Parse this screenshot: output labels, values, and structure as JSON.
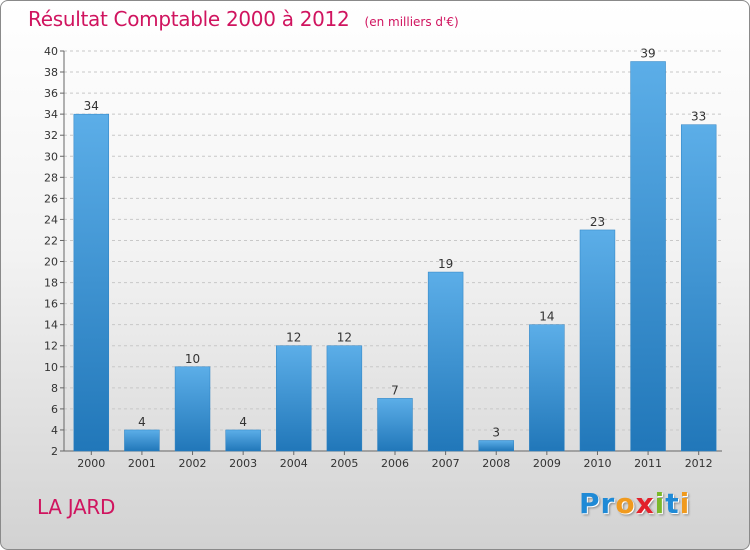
{
  "header": {
    "title": "Résultat Comptable 2000 à 2012",
    "unit": "(en milliers d'€)"
  },
  "place": "LA JARD",
  "logo": {
    "letters": [
      {
        "char": "P",
        "color": "#1f8ad6"
      },
      {
        "char": "r",
        "color": "#1f8ad6"
      },
      {
        "char": "o",
        "color": "#f09a1e"
      },
      {
        "char": "x",
        "color": "#e2212b"
      },
      {
        "char": "i",
        "color": "#7bb82a"
      },
      {
        "char": "t",
        "color": "#1f8ad6"
      },
      {
        "char": "i",
        "color": "#f09a1e"
      }
    ]
  },
  "chart_data": {
    "type": "bar",
    "title": "Résultat Comptable 2000 à 2012",
    "subtitle": "(en milliers d'€)",
    "xlabel": "",
    "ylabel": "",
    "categories": [
      "2000",
      "2001",
      "2002",
      "2003",
      "2004",
      "2005",
      "2006",
      "2007",
      "2008",
      "2009",
      "2010",
      "2011",
      "2012"
    ],
    "values": [
      34,
      4,
      10,
      4,
      12,
      12,
      7,
      19,
      3,
      14,
      23,
      39,
      33
    ],
    "ylim": [
      2,
      40
    ],
    "yticks": [
      2,
      4,
      6,
      8,
      10,
      12,
      14,
      16,
      18,
      20,
      22,
      24,
      26,
      28,
      30,
      32,
      34,
      36,
      38,
      40
    ],
    "grid": "horizontal dashed",
    "legend": "none",
    "bar_color": "#3d97d8"
  }
}
